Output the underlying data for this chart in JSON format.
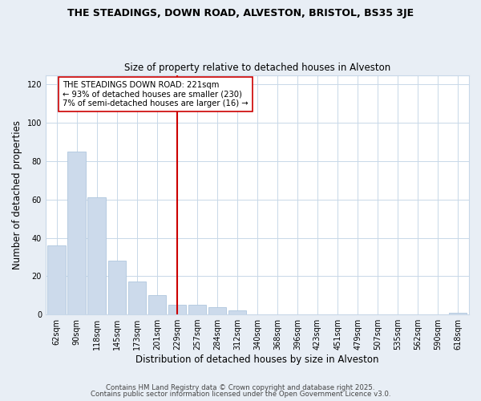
{
  "title": "THE STEADINGS, DOWN ROAD, ALVESTON, BRISTOL, BS35 3JE",
  "subtitle": "Size of property relative to detached houses in Alveston",
  "xlabel": "Distribution of detached houses by size in Alveston",
  "ylabel": "Number of detached properties",
  "bar_labels": [
    "62sqm",
    "90sqm",
    "118sqm",
    "145sqm",
    "173sqm",
    "201sqm",
    "229sqm",
    "257sqm",
    "284sqm",
    "312sqm",
    "340sqm",
    "368sqm",
    "396sqm",
    "423sqm",
    "451sqm",
    "479sqm",
    "507sqm",
    "535sqm",
    "562sqm",
    "590sqm",
    "618sqm"
  ],
  "bar_values": [
    36,
    85,
    61,
    28,
    17,
    10,
    5,
    5,
    4,
    2,
    0,
    0,
    0,
    0,
    0,
    0,
    0,
    0,
    0,
    0,
    1
  ],
  "bar_color": "#ccdaeb",
  "bar_edge_color": "#afc6de",
  "vline_color": "#cc0000",
  "annotation_title": "THE STEADINGS DOWN ROAD: 221sqm",
  "annotation_line1": "← 93% of detached houses are smaller (230)",
  "annotation_line2": "7% of semi-detached houses are larger (16) →",
  "ylim": [
    0,
    125
  ],
  "yticks": [
    0,
    20,
    40,
    60,
    80,
    100,
    120
  ],
  "footer1": "Contains HM Land Registry data © Crown copyright and database right 2025.",
  "footer2": "Contains public sector information licensed under the Open Government Licence v3.0.",
  "background_color": "#e8eef5",
  "plot_bg_color": "#ffffff",
  "grid_color": "#c8d8e8"
}
